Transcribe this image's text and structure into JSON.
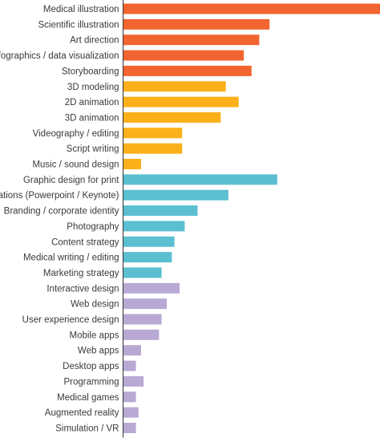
{
  "chart_data": {
    "type": "bar",
    "orientation": "horizontal",
    "title": "",
    "xlabel": "",
    "ylabel": "",
    "grid": false,
    "legend": "none",
    "categories": [
      "Medical illustration",
      "Scientific illustration",
      "Art direction",
      "Infographics / data visualization",
      "Storyboarding",
      "3D modeling",
      "2D animation",
      "3D animation",
      "Videography / editing",
      "Script writing",
      "Music / sound design",
      "Graphic design for print",
      "Presentations (Powerpoint / Keynote)",
      "Branding / corporate identity",
      "Photography",
      "Content strategy",
      "Medical writing / editing",
      "Marketing strategy",
      "Interactive design",
      "Web design",
      "User experience design",
      "Mobile apps",
      "Web apps",
      "Desktop apps",
      "Programming",
      "Medical games",
      "Augmented reality",
      "Simulation / VR"
    ],
    "values": [
      100,
      57,
      53,
      47,
      50,
      40,
      45,
      38,
      23,
      23,
      7,
      60,
      41,
      29,
      24,
      20,
      19,
      15,
      22,
      17,
      15,
      14,
      7,
      5,
      8,
      5,
      6,
      5
    ],
    "xlim": [
      0,
      100
    ],
    "colors": {
      "group_1": "#f26530",
      "group_2": "#fbb01a",
      "group_3": "#5bbfd1",
      "group_4": "#b8a9d4",
      "axis": "#333333"
    },
    "bar_groups": [
      "group_1",
      "group_1",
      "group_1",
      "group_1",
      "group_1",
      "group_2",
      "group_2",
      "group_2",
      "group_2",
      "group_2",
      "group_2",
      "group_3",
      "group_3",
      "group_3",
      "group_3",
      "group_3",
      "group_3",
      "group_3",
      "group_4",
      "group_4",
      "group_4",
      "group_4",
      "group_4",
      "group_4",
      "group_4",
      "group_4",
      "group_4",
      "group_4"
    ]
  }
}
